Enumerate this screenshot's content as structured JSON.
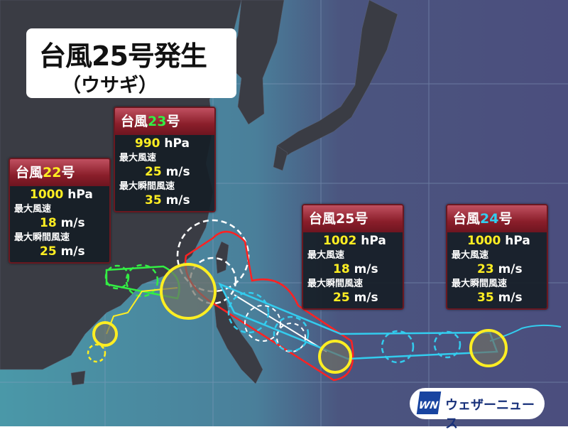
{
  "title": {
    "main": "台風25号発生",
    "sub": "（ウサギ）"
  },
  "typhoons": [
    {
      "id": "22",
      "header_prefix": "台風",
      "number": "22",
      "header_suffix": "号",
      "pressure": "1000",
      "pressure_unit": "hPa",
      "max_wind_label": "最大風速",
      "max_wind": "18",
      "max_gust_label": "最大瞬間風速",
      "max_gust": "25",
      "speed_unit": "m/s",
      "number_color": "#ffee22"
    },
    {
      "id": "23",
      "header_prefix": "台風",
      "number": "23",
      "header_suffix": "号",
      "pressure": "990",
      "pressure_unit": "hPa",
      "max_wind_label": "最大風速",
      "max_wind": "25",
      "max_gust_label": "最大瞬間風速",
      "max_gust": "35",
      "speed_unit": "m/s",
      "number_color": "#33ee44"
    },
    {
      "id": "25",
      "header_prefix": "台風",
      "number": "25",
      "header_suffix": "号",
      "pressure": "1002",
      "pressure_unit": "hPa",
      "max_wind_label": "最大風速",
      "max_wind": "18",
      "max_gust_label": "最大瞬間風速",
      "max_gust": "25",
      "speed_unit": "m/s",
      "number_color": "#ffffff"
    },
    {
      "id": "24",
      "header_prefix": "台風",
      "number": "24",
      "header_suffix": "号",
      "pressure": "1000",
      "pressure_unit": "hPa",
      "max_wind_label": "最大風速",
      "max_wind": "23",
      "max_gust_label": "最大瞬間風速",
      "max_gust": "35",
      "speed_unit": "m/s",
      "number_color": "#33ccee"
    }
  ],
  "logo": {
    "mark": "WN",
    "text": "ウェザーニュース"
  },
  "colors": {
    "sea_west": "#4a98a8",
    "sea_east": "#4b4e7e",
    "land": "#3a3c44",
    "storm_circle": "#ffee22",
    "forecast_25": "#ff2222",
    "forecast_24": "#33ccee",
    "forecast_22": "#33ee44",
    "forecast_23": "#ffffff"
  }
}
